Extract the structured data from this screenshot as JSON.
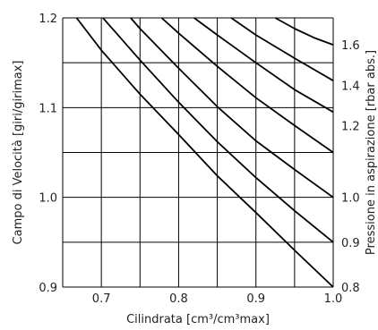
{
  "chart_data": {
    "type": "line",
    "xlabel": "Cilindrata [cm³/cm³max]",
    "ylabel": "Campo di Velocità [giri/girimax]",
    "y2label": "Pressione in aspirazione [rbar abs.]",
    "xlim": [
      0.65,
      1.0
    ],
    "ylim": [
      0.9,
      1.2
    ],
    "grid": true,
    "x_ticks": [
      {
        "value": 0.7,
        "label": "0.7"
      },
      {
        "value": 0.8,
        "label": "0.8"
      },
      {
        "value": 0.9,
        "label": "0.9"
      },
      {
        "value": 1.0,
        "label": "1.0"
      }
    ],
    "x_grid": [
      0.65,
      0.7,
      0.75,
      0.8,
      0.85,
      0.9,
      0.95,
      1.0
    ],
    "y_ticks": [
      {
        "value": 0.9,
        "label": "0.9"
      },
      {
        "value": 1.0,
        "label": "1.0"
      },
      {
        "value": 1.1,
        "label": "1.1"
      },
      {
        "value": 1.2,
        "label": "1.2"
      }
    ],
    "y_grid": [
      0.9,
      0.95,
      1.0,
      1.05,
      1.1,
      1.15,
      1.2
    ],
    "series": [
      {
        "right_label": "0.8",
        "right_label_y": 0.9,
        "x": [
          0.668,
          0.7,
          0.75,
          0.8,
          0.85,
          0.9,
          0.95,
          1.0
        ],
        "y": [
          1.2,
          1.164,
          1.115,
          1.07,
          1.024,
          0.983,
          0.941,
          0.9
        ]
      },
      {
        "right_label": "0.9",
        "right_label_y": 0.95,
        "x": [
          0.702,
          0.75,
          0.8,
          0.85,
          0.9,
          0.95,
          1.0
        ],
        "y": [
          1.2,
          1.153,
          1.106,
          1.062,
          1.022,
          0.985,
          0.95
        ]
      },
      {
        "right_label": "1.0",
        "right_label_y": 1.0,
        "x": [
          0.738,
          0.75,
          0.8,
          0.85,
          0.9,
          0.95,
          1.0
        ],
        "y": [
          1.2,
          1.188,
          1.144,
          1.101,
          1.063,
          1.031,
          1.0
        ]
      },
      {
        "right_label": "1.2",
        "right_label_y": 1.08,
        "x": [
          0.778,
          0.8,
          0.85,
          0.9,
          0.95,
          1.0
        ],
        "y": [
          1.2,
          1.183,
          1.146,
          1.111,
          1.08,
          1.05
        ]
      },
      {
        "right_label": "1.4",
        "right_label_y": 1.125,
        "x": [
          0.82,
          0.85,
          0.9,
          0.95,
          1.0
        ],
        "y": [
          1.2,
          1.181,
          1.15,
          1.12,
          1.095
        ]
      },
      {
        "right_label": "1.6",
        "right_label_y": 1.17,
        "x": [
          0.868,
          0.9,
          0.95,
          1.0
        ],
        "y": [
          1.2,
          1.181,
          1.155,
          1.13
        ]
      },
      {
        "right_label": "",
        "right_label_y": null,
        "x": [
          0.925,
          0.95,
          0.975,
          1.0
        ],
        "y": [
          1.2,
          1.188,
          1.178,
          1.17
        ]
      }
    ]
  }
}
